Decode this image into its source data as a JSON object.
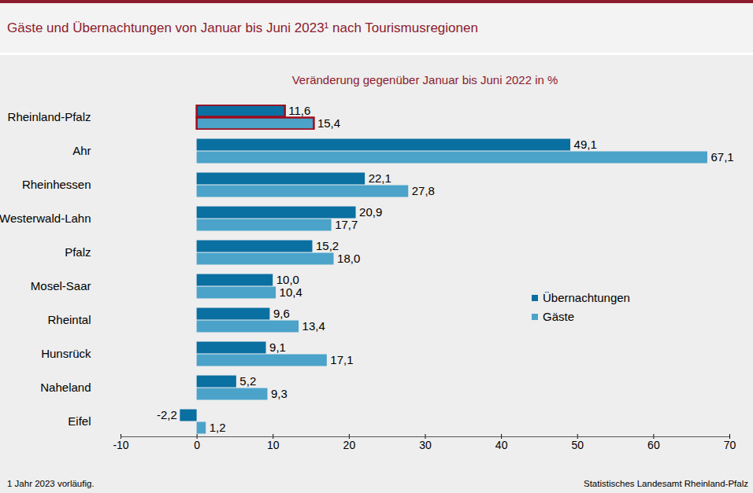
{
  "chart_data": {
    "type": "bar",
    "orientation": "horizontal",
    "title": "Gäste und Übernachtungen von Januar bis Juni 2023¹ nach Tourismusregionen",
    "subtitle": "Veränderung gegenüber Januar bis Juni 2022 in %",
    "footnote": "1 Jahr 2023 vorläufig.",
    "source": "Statistisches Landesamt Rheinland-Pfalz",
    "categories": [
      "Rheinland-Pfalz",
      "Ahr",
      "Rheinhessen",
      "Westerwald-Lahn",
      "Pfalz",
      "Mosel-Saar",
      "Rheintal",
      "Hunsrück",
      "Naheland",
      "Eifel"
    ],
    "series": [
      {
        "name": "Übernachtungen",
        "color": "#0a6fa1",
        "values": [
          11.6,
          49.1,
          22.1,
          20.9,
          15.2,
          10.0,
          9.6,
          9.1,
          5.2,
          -2.2
        ],
        "value_labels": [
          "11,6",
          "49,1",
          "22,1",
          "20,9",
          "15,2",
          "10,0",
          "9,6",
          "9,1",
          "5,2",
          "-2,2"
        ]
      },
      {
        "name": "Gäste",
        "color": "#4ba3c9",
        "values": [
          15.4,
          67.1,
          27.8,
          17.7,
          18.0,
          10.4,
          13.4,
          17.1,
          9.3,
          1.2
        ],
        "value_labels": [
          "15,4",
          "67,1",
          "27,8",
          "17,7",
          "18,0",
          "10,4",
          "13,4",
          "17,1",
          "9,3",
          "1,2"
        ]
      }
    ],
    "xlim": [
      -10,
      70
    ],
    "xticks": [
      -10,
      0,
      10,
      20,
      30,
      40,
      50,
      60,
      70
    ],
    "grid": false,
    "data_labels": true,
    "legend": "right"
  }
}
